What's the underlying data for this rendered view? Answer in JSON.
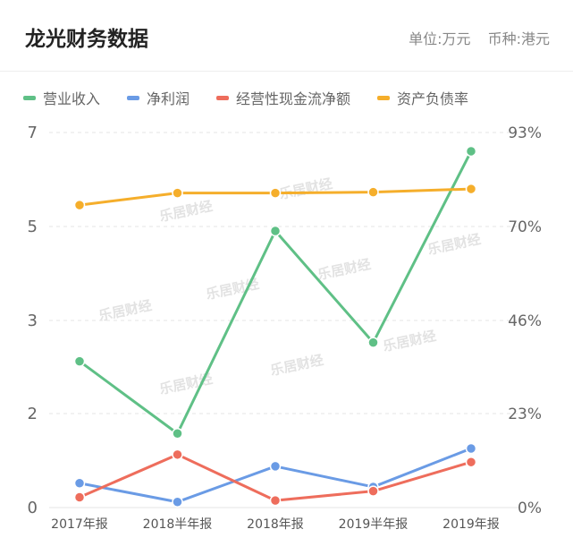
{
  "header": {
    "title": "龙光财务数据",
    "unit": "单位:万元",
    "currency": "币种:港元"
  },
  "watermark_text": "乐居财经",
  "chart_data": {
    "type": "line",
    "categories": [
      "2017年报",
      "2018半年报",
      "2018年报",
      "2019半年报",
      "2019年报"
    ],
    "y_left": {
      "ticks": [
        "0",
        "2",
        "3",
        "5",
        "7"
      ],
      "ylim": [
        0,
        8
      ]
    },
    "y_right": {
      "ticks": [
        "0%",
        "23%",
        "46%",
        "70%",
        "93%"
      ],
      "ylim": [
        0,
        93
      ]
    },
    "grid": true,
    "legend_position": "top-left",
    "series": [
      {
        "name": "营业收入",
        "axis": "left",
        "color": "#5fc086",
        "values": [
          3.12,
          1.58,
          5.9,
          3.52,
          7.6
        ]
      },
      {
        "name": "净利润",
        "axis": "left",
        "color": "#6a9be5",
        "values": [
          0.52,
          0.12,
          0.88,
          0.44,
          1.26
        ]
      },
      {
        "name": "经营性现金流净额",
        "axis": "left",
        "color": "#ee6d5c",
        "values": [
          0.22,
          1.13,
          0.15,
          0.35,
          0.97
        ]
      },
      {
        "name": "资产负债率",
        "axis": "right",
        "color": "#f5ae2b",
        "values": [
          75,
          78,
          78,
          78.2,
          79
        ]
      }
    ]
  }
}
